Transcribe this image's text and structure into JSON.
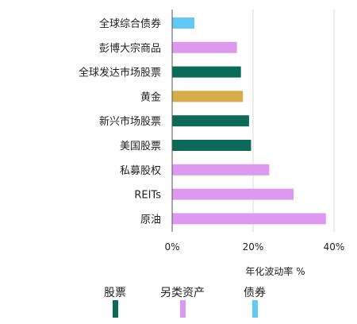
{
  "chart_data": {
    "type": "bar",
    "orientation": "horizontal",
    "categories": [
      "全球综合债券",
      "彭博大宗商品",
      "全球发达市场股票",
      "黄金",
      "新兴市场股票",
      "美国股票",
      "私募股权",
      "REITs",
      "原油"
    ],
    "values": [
      5.5,
      16,
      17,
      17.5,
      19,
      19.5,
      24,
      30,
      38
    ],
    "groups": [
      "债券",
      "另类资产",
      "股票",
      "另类资产",
      "股票",
      "股票",
      "另类资产",
      "另类资产",
      "另类资产"
    ],
    "xlim": [
      0,
      40
    ],
    "xticks": [
      0,
      20,
      40
    ],
    "xtick_labels": [
      "0%",
      "20%",
      "40%"
    ],
    "xlabel": "年化波动率 %",
    "ylabel": "",
    "grid": "vertical",
    "legend": {
      "placement": "bottom",
      "items": [
        {
          "name": "股票",
          "color": "#0b6b58"
        },
        {
          "name": "另类资产",
          "color": "#dd98f0"
        },
        {
          "name": "债券",
          "color": "#63c8f4"
        }
      ]
    },
    "special_colors": {
      "黄金": "#d6ab4a"
    }
  }
}
